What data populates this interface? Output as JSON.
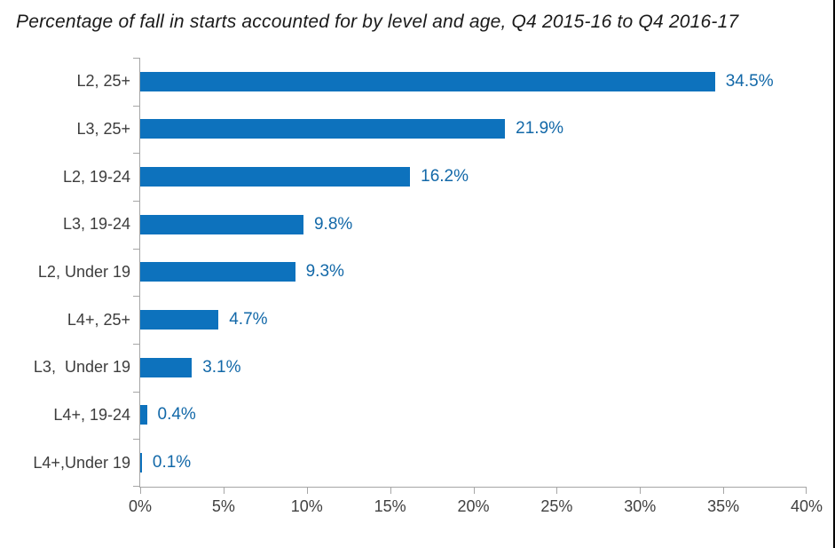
{
  "page": {
    "background_color": "#ffffff",
    "right_border_color": "#000000"
  },
  "chart_data": {
    "type": "bar",
    "orientation": "horizontal",
    "title": "Percentage of fall in starts accounted for by level and age, Q4 2015-16 to Q4 2016-17",
    "categories": [
      "L2, 25+",
      "L3, 25+",
      "L2, 19-24",
      "L3, 19-24",
      "L2, Under 19",
      "L4+, 25+",
      "L3,  Under 19",
      "L4+, 19-24",
      "L4+,Under 19"
    ],
    "values": [
      34.5,
      21.9,
      16.2,
      9.8,
      9.3,
      4.7,
      3.1,
      0.4,
      0.1
    ],
    "data_labels": [
      "34.5%",
      "21.9%",
      "16.2%",
      "9.8%",
      "9.3%",
      "4.7%",
      "3.1%",
      "0.4%",
      "0.1%"
    ],
    "xlabel": "",
    "ylabel": "",
    "xlim": [
      0,
      40
    ],
    "x_ticks": [
      0,
      5,
      10,
      15,
      20,
      25,
      30,
      35,
      40
    ],
    "x_tick_labels": [
      "0%",
      "5%",
      "10%",
      "15%",
      "20%",
      "25%",
      "30%",
      "35%",
      "40%"
    ],
    "grid": false,
    "legend": false,
    "colors": {
      "bar": "#0d72bd",
      "data_label": "#1268a8",
      "axis_line": "#a6a6a6",
      "tick_mark": "#a6a6a6",
      "category_label": "#3d3d3d",
      "x_tick_label": "#404040",
      "title": "#1a1a1a"
    }
  }
}
